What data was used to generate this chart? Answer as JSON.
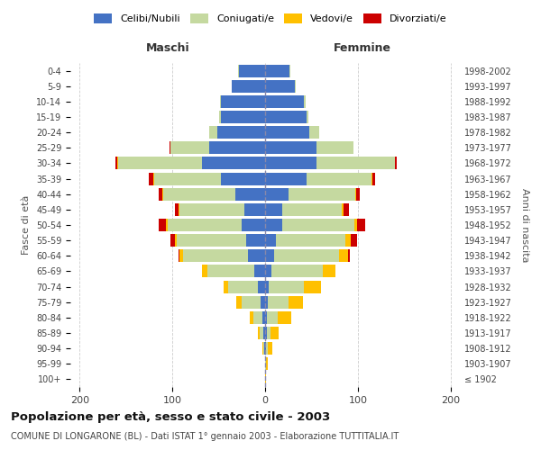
{
  "age_groups": [
    "100+",
    "95-99",
    "90-94",
    "85-89",
    "80-84",
    "75-79",
    "70-74",
    "65-69",
    "60-64",
    "55-59",
    "50-54",
    "45-49",
    "40-44",
    "35-39",
    "30-34",
    "25-29",
    "20-24",
    "15-19",
    "10-14",
    "5-9",
    "0-4"
  ],
  "birth_years": [
    "≤ 1902",
    "1903-1907",
    "1908-1912",
    "1913-1917",
    "1918-1922",
    "1923-1927",
    "1928-1932",
    "1933-1937",
    "1938-1942",
    "1943-1947",
    "1948-1952",
    "1953-1957",
    "1958-1962",
    "1963-1967",
    "1968-1972",
    "1973-1977",
    "1978-1982",
    "1983-1987",
    "1988-1992",
    "1993-1997",
    "1998-2002"
  ],
  "maschi_celibe": [
    0,
    0,
    1,
    2,
    3,
    5,
    8,
    12,
    18,
    20,
    25,
    22,
    32,
    48,
    68,
    60,
    52,
    48,
    48,
    36,
    28
  ],
  "maschi_coniugato": [
    0,
    0,
    1,
    4,
    10,
    20,
    32,
    50,
    70,
    75,
    80,
    70,
    78,
    72,
    90,
    42,
    8,
    2,
    1,
    0,
    1
  ],
  "maschi_vedovo": [
    0,
    0,
    1,
    2,
    4,
    6,
    5,
    6,
    4,
    2,
    2,
    1,
    1,
    1,
    1,
    0,
    0,
    0,
    0,
    0,
    0
  ],
  "maschi_divorziato": [
    0,
    0,
    0,
    0,
    0,
    0,
    0,
    0,
    1,
    5,
    8,
    4,
    4,
    4,
    2,
    1,
    0,
    0,
    0,
    0,
    0
  ],
  "femmine_celibe": [
    0,
    0,
    1,
    2,
    2,
    3,
    4,
    7,
    10,
    12,
    18,
    18,
    25,
    45,
    55,
    55,
    48,
    45,
    42,
    32,
    26
  ],
  "femmine_coniugata": [
    0,
    1,
    2,
    4,
    12,
    22,
    38,
    55,
    70,
    75,
    78,
    65,
    72,
    70,
    85,
    40,
    10,
    2,
    2,
    1,
    1
  ],
  "femmine_vedova": [
    1,
    2,
    5,
    9,
    14,
    16,
    18,
    14,
    9,
    5,
    3,
    2,
    1,
    1,
    0,
    0,
    0,
    0,
    0,
    0,
    0
  ],
  "femmine_divorziata": [
    0,
    0,
    0,
    0,
    0,
    0,
    0,
    0,
    2,
    7,
    9,
    5,
    4,
    3,
    2,
    0,
    0,
    0,
    0,
    0,
    0
  ],
  "color_celibe": "#4472c4",
  "color_coniugato": "#c5d9a0",
  "color_vedovo": "#ffc000",
  "color_divorziato": "#cc0000",
  "title": "Popolazione per età, sesso e stato civile - 2003",
  "subtitle": "COMUNE DI LONGARONE (BL) - Dati ISTAT 1° gennaio 2003 - Elaborazione TUTTITALIA.IT",
  "xlabel_maschi": "Maschi",
  "xlabel_femmine": "Femmine",
  "ylabel": "Fasce di età",
  "ylabel_right": "Anni di nascita",
  "xlim": 210,
  "bg_color": "#ffffff",
  "grid_color": "#cccccc"
}
